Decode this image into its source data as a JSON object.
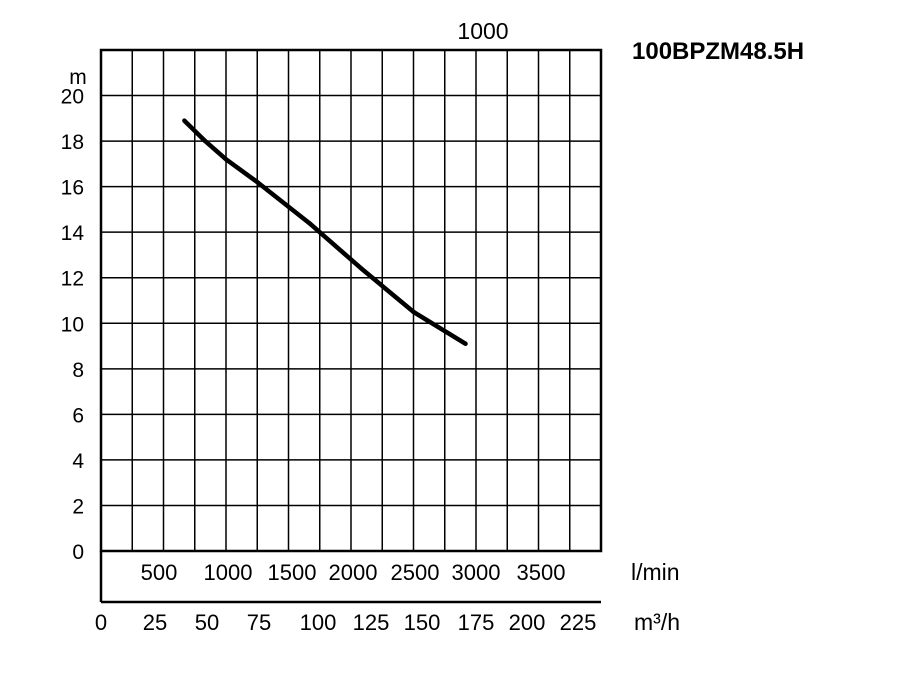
{
  "chart_data": {
    "type": "line",
    "title": "100BPZM48.5H",
    "top_label": "1000",
    "ylabel": "m",
    "ylim": [
      0,
      22
    ],
    "y_ticks": [
      0,
      2,
      4,
      6,
      8,
      10,
      12,
      14,
      16,
      18,
      20
    ],
    "xlabel": "m³/h",
    "xlim": [
      0,
      240
    ],
    "x_ticks": [
      0,
      25,
      50,
      75,
      100,
      125,
      150,
      175,
      200,
      225
    ],
    "x2label": "l/min",
    "x2_ticks": [
      500,
      1000,
      1500,
      2000,
      2500,
      3000,
      3500
    ],
    "grid": true,
    "series": [
      {
        "x": [
          40,
          50,
          60,
          75,
          100,
          125,
          150,
          175
        ],
        "y": [
          18.9,
          18.0,
          17.2,
          16.2,
          14.4,
          12.4,
          10.5,
          9.1
        ]
      }
    ]
  },
  "colors": {
    "line": "#000000",
    "grid": "#000000",
    "background": "#ffffff"
  }
}
